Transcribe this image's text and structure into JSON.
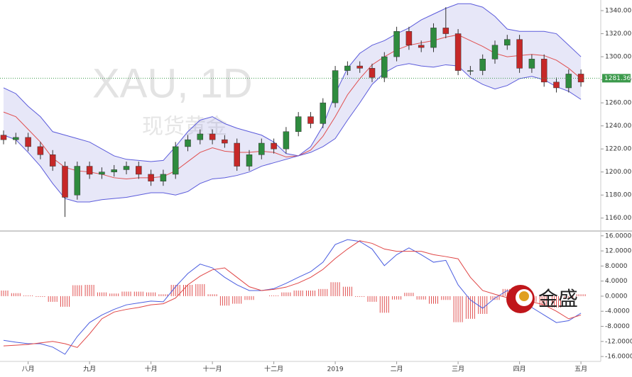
{
  "chart_data": [
    {
      "type": "candlestick",
      "watermark": "XAU, 1D",
      "watermark_sub": "现货黄金",
      "ylim": [
        1150,
        1348
      ],
      "yticks": [
        {
          "value": 1160,
          "label": "1160.00"
        },
        {
          "value": 1180,
          "label": "1180.00"
        },
        {
          "value": 1200,
          "label": "1200.00"
        },
        {
          "value": 1220,
          "label": "1220.00"
        },
        {
          "value": 1240,
          "label": "1240.00"
        },
        {
          "value": 1260,
          "label": "1260.00"
        },
        {
          "value": 1280,
          "label": "1280.00"
        },
        {
          "value": 1300,
          "label": "1300.00"
        },
        {
          "value": 1320,
          "label": "1320.00"
        },
        {
          "value": 1340,
          "label": "1340.00"
        }
      ],
      "last_price": 1281.36,
      "last_price_color": "#3c9a4c",
      "up_color": "#2e8b3e",
      "down_color": "#c62828",
      "open": [
        1232,
        1228,
        1230,
        1222,
        1215,
        1205,
        1180,
        1205,
        1198,
        1200,
        1202,
        1205,
        1198,
        1192,
        1198,
        1222,
        1228,
        1233,
        1228,
        1225,
        1205,
        1215,
        1225,
        1220,
        1235,
        1248,
        1242,
        1260,
        1288,
        1292,
        1290,
        1282,
        1300,
        1322,
        1310,
        1308,
        1325,
        1320,
        1288,
        1288,
        1298,
        1310,
        1315,
        1290,
        1298,
        1278,
        1273,
        1285
      ],
      "high": [
        1236,
        1234,
        1234,
        1226,
        1219,
        1209,
        1209,
        1209,
        1204,
        1206,
        1209,
        1209,
        1202,
        1202,
        1226,
        1232,
        1237,
        1237,
        1232,
        1229,
        1219,
        1229,
        1229,
        1239,
        1252,
        1252,
        1264,
        1292,
        1296,
        1296,
        1294,
        1304,
        1326,
        1326,
        1314,
        1329,
        1343,
        1324,
        1292,
        1302,
        1314,
        1319,
        1319,
        1302,
        1302,
        1282,
        1289,
        1289
      ],
      "low": [
        1224,
        1224,
        1218,
        1211,
        1201,
        1161,
        1176,
        1194,
        1194,
        1196,
        1198,
        1194,
        1188,
        1188,
        1194,
        1218,
        1224,
        1224,
        1221,
        1201,
        1201,
        1211,
        1216,
        1216,
        1231,
        1238,
        1238,
        1256,
        1284,
        1286,
        1278,
        1278,
        1296,
        1306,
        1304,
        1304,
        1316,
        1284,
        1284,
        1284,
        1294,
        1306,
        1286,
        1286,
        1274,
        1269,
        1269,
        1274
      ],
      "close": [
        1228,
        1230,
        1222,
        1215,
        1205,
        1178,
        1205,
        1198,
        1200,
        1202,
        1205,
        1198,
        1192,
        1198,
        1222,
        1228,
        1233,
        1228,
        1225,
        1205,
        1215,
        1225,
        1220,
        1235,
        1248,
        1242,
        1260,
        1288,
        1292,
        1290,
        1282,
        1300,
        1322,
        1310,
        1308,
        1325,
        1320,
        1288,
        1288,
        1298,
        1310,
        1315,
        1290,
        1298,
        1278,
        1273,
        1285,
        1278
      ],
      "series": [
        {
          "color": "#5b5bdb",
          "values": [
            1273,
            1268,
            1257,
            1248,
            1235,
            1232,
            1229,
            1226,
            1220,
            1214,
            1211,
            1210,
            1209,
            1210,
            1222,
            1235,
            1245,
            1248,
            1242,
            1238,
            1235,
            1232,
            1226,
            1216,
            1214,
            1222,
            1240,
            1268,
            1290,
            1303,
            1310,
            1314,
            1320,
            1325,
            1332,
            1337,
            1342,
            1346,
            1346,
            1343,
            1335,
            1324,
            1322,
            1322,
            1322,
            1320,
            1310,
            1300
          ]
        },
        {
          "color": "#e05050",
          "values": [
            1252,
            1248,
            1237,
            1226,
            1212,
            1204,
            1201,
            1200,
            1198,
            1195,
            1194,
            1195,
            1195,
            1196,
            1201,
            1209,
            1217,
            1221,
            1218,
            1217,
            1217,
            1218,
            1217,
            1213,
            1214,
            1219,
            1231,
            1248,
            1267,
            1281,
            1293,
            1300,
            1306,
            1310,
            1312,
            1314,
            1317,
            1319,
            1314,
            1309,
            1303,
            1300,
            1301,
            1302,
            1301,
            1297,
            1290,
            1281
          ]
        },
        {
          "color": "#5b5bdb",
          "values": [
            1232,
            1228,
            1217,
            1205,
            1190,
            1177,
            1174,
            1174,
            1176,
            1177,
            1178,
            1180,
            1182,
            1182,
            1180,
            1183,
            1190,
            1194,
            1195,
            1197,
            1200,
            1205,
            1208,
            1211,
            1214,
            1217,
            1222,
            1229,
            1245,
            1260,
            1276,
            1286,
            1292,
            1294,
            1292,
            1291,
            1293,
            1292,
            1282,
            1276,
            1272,
            1275,
            1281,
            1283,
            1280,
            1274,
            1270,
            1263
          ]
        }
      ],
      "band_fill": "rgba(110,110,215,0.17)"
    },
    {
      "type": "macd",
      "ylim": [
        -17.3,
        16.9
      ],
      "yticks": [
        {
          "value": -16,
          "label": "-16.0000"
        },
        {
          "value": -12,
          "label": "-12.0000"
        },
        {
          "value": -8,
          "label": "-8.0000"
        },
        {
          "value": -4,
          "label": "-4.0000"
        },
        {
          "value": 0,
          "label": "0.0000"
        },
        {
          "value": 4,
          "label": "4.0000"
        },
        {
          "value": 8,
          "label": "8.0000"
        },
        {
          "value": 12,
          "label": "12.0000"
        },
        {
          "value": 16,
          "label": "16.0000"
        }
      ],
      "categories": [
        null,
        null,
        "八月",
        null,
        null,
        null,
        null,
        "九月",
        null,
        null,
        null,
        null,
        "十月",
        null,
        null,
        null,
        null,
        "十一月",
        null,
        null,
        null,
        null,
        "十二月",
        null,
        null,
        null,
        null,
        "2019",
        null,
        null,
        null,
        null,
        "二月",
        null,
        null,
        null,
        null,
        "三月",
        null,
        null,
        null,
        null,
        "四月",
        null,
        null,
        null,
        null,
        "五月"
      ],
      "hist_color": "#e05050",
      "histogram": [
        1.5,
        0.8,
        0.2,
        -0.2,
        -1.5,
        -2.8,
        2.9,
        3,
        1,
        0.7,
        1.2,
        1.2,
        1,
        0.5,
        3,
        3,
        3.2,
        0.5,
        -2.5,
        -2,
        -1,
        0,
        0.2,
        1,
        1.5,
        1.5,
        1.9,
        3.7,
        2.5,
        -0.2,
        -1.5,
        -4.4,
        -0.9,
        0.9,
        -0.9,
        -2,
        -1,
        -6.9,
        -6,
        -4.7,
        -1,
        1.9,
        0.4,
        -1.5,
        -2.7,
        -3,
        -0.5,
        0.5
      ],
      "series": [
        {
          "color": "#4a5de0",
          "values": [
            -11.7,
            -12.2,
            -12.6,
            -12.6,
            -13.5,
            -15.4,
            -10.7,
            -7,
            -5,
            -3.5,
            -2.3,
            -1.8,
            -1.3,
            -1.5,
            2.5,
            6,
            8.5,
            7.5,
            5,
            3,
            1.5,
            1.5,
            2,
            3.4,
            5,
            6.5,
            9,
            13.7,
            15,
            14.5,
            12.5,
            8.1,
            11,
            12.8,
            11,
            9,
            9.5,
            3,
            -1,
            -3.2,
            -0.5,
            1.5,
            0,
            -3,
            -5,
            -7,
            -6.5,
            -4.5
          ]
        },
        {
          "color": "#e04545",
          "values": [
            -13.2,
            -13,
            -12.8,
            -12.4,
            -12,
            -12.6,
            -13.6,
            -10,
            -6,
            -4.2,
            -3.5,
            -3,
            -2.3,
            -2,
            -0.5,
            3,
            5.3,
            7,
            7.5,
            5,
            2.5,
            1.5,
            1.8,
            2.4,
            3.5,
            5,
            7.1,
            10,
            12.5,
            14.7,
            14,
            12.5,
            11.9,
            11.9,
            11.9,
            11,
            10.5,
            9.9,
            5,
            1.5,
            0.5,
            -0.4,
            -0.4,
            -1.5,
            -2.3,
            -4,
            -6,
            -5
          ]
        }
      ]
    }
  ],
  "logo": "金盛"
}
